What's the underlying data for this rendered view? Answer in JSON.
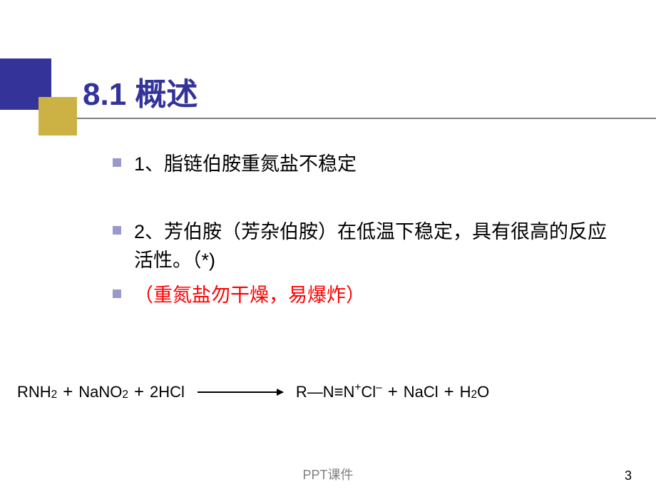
{
  "colors": {
    "deco_blue": "#333399",
    "deco_gold": "#ccb144",
    "line_gray": "#808080",
    "title_blue": "#333399",
    "bullet_blue": "#9999cc",
    "text_black": "#000000",
    "text_red": "#ff0000",
    "footer_gray": "#808080"
  },
  "title": {
    "text": "8.1 概述",
    "fontsize": 44
  },
  "bullets": [
    {
      "text": "1、脂链伯胺重氮盐不稳定",
      "color": "#000000",
      "fontsize": 27
    },
    {
      "text": "2、芳伯胺（芳杂伯胺）在低温下稳定，具有很高的反应活性。（*)",
      "color": "#000000",
      "fontsize": 27
    },
    {
      "text": "（重氮盐勿干燥，易爆炸）",
      "color": "#ff0000",
      "fontsize": 27
    }
  ],
  "equation": {
    "fontsize": 22,
    "lhs": [
      {
        "base": "RNH",
        "sub": "2"
      },
      {
        "base": "NaNO",
        "sub": "2"
      },
      {
        "base": "2HCl"
      }
    ],
    "rhs": [
      {
        "raw": "R—N≡N",
        "sup": "+",
        "tail": " Cl",
        "tailsup": "–"
      },
      {
        "base": "NaCl"
      },
      {
        "base": "H",
        "sub": "2",
        "tail": " O"
      }
    ]
  },
  "footer": {
    "label": "PPT课件",
    "page": "3"
  }
}
